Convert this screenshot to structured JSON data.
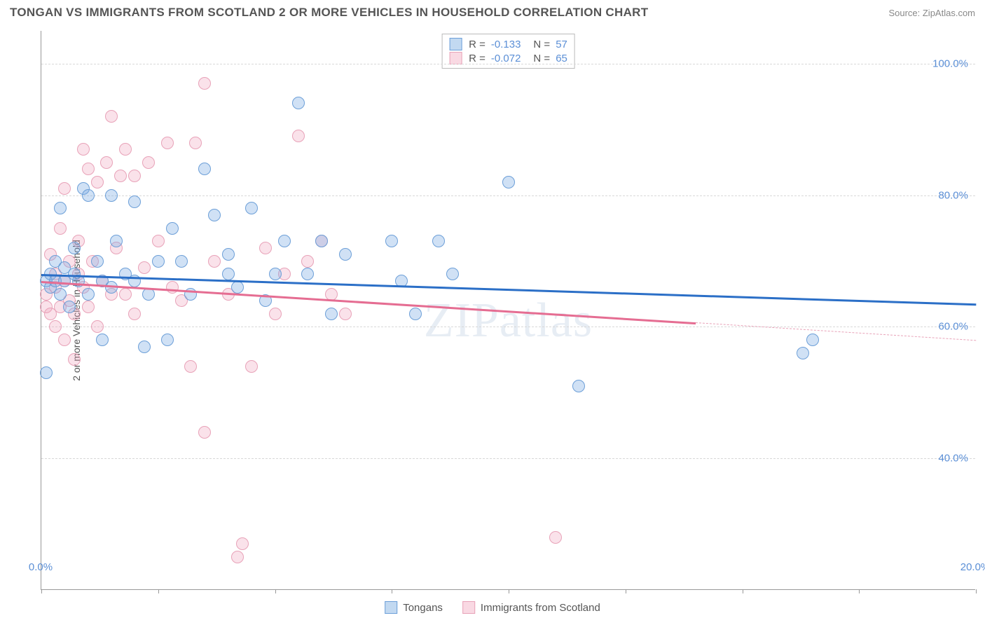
{
  "title": "TONGAN VS IMMIGRANTS FROM SCOTLAND 2 OR MORE VEHICLES IN HOUSEHOLD CORRELATION CHART",
  "source": "Source: ZipAtlas.com",
  "watermark": "ZIPatlas",
  "ylabel": "2 or more Vehicles in Household",
  "chart": {
    "type": "scatter",
    "xlim": [
      0,
      20
    ],
    "ylim": [
      20,
      105
    ],
    "x_ticks": [
      0,
      2.5,
      5,
      7.5,
      10,
      12.5,
      15,
      17.5,
      20
    ],
    "x_tick_labels": {
      "0": "0.0%",
      "20": "20.0%"
    },
    "y_gridlines": [
      40,
      60,
      80,
      100
    ],
    "y_tick_labels": {
      "40": "40.0%",
      "60": "60.0%",
      "80": "80.0%",
      "100": "100.0%"
    },
    "background_color": "#ffffff",
    "grid_color": "#d8d8d8",
    "axis_color": "#999999",
    "tick_label_color": "#5b8fd6",
    "marker_radius": 9,
    "series": [
      {
        "name": "Tongans",
        "color_fill": "rgba(120,170,225,0.35)",
        "color_stroke": "#6c9fd8",
        "trend_color": "#2b6fc7",
        "trend_y_start": 68,
        "trend_y_end": 63.5,
        "R": "-0.133",
        "N": "57",
        "points": [
          [
            0.1,
            67
          ],
          [
            0.1,
            53
          ],
          [
            0.2,
            66
          ],
          [
            0.2,
            68
          ],
          [
            0.3,
            67
          ],
          [
            0.3,
            70
          ],
          [
            0.4,
            78
          ],
          [
            0.4,
            65
          ],
          [
            0.5,
            67
          ],
          [
            0.5,
            69
          ],
          [
            0.6,
            63
          ],
          [
            0.7,
            68
          ],
          [
            0.7,
            72
          ],
          [
            0.8,
            67
          ],
          [
            0.9,
            81
          ],
          [
            1.0,
            80
          ],
          [
            1.0,
            65
          ],
          [
            1.2,
            70
          ],
          [
            1.3,
            67
          ],
          [
            1.3,
            58
          ],
          [
            1.5,
            80
          ],
          [
            1.5,
            66
          ],
          [
            1.6,
            73
          ],
          [
            1.8,
            68
          ],
          [
            2.0,
            67
          ],
          [
            2.0,
            79
          ],
          [
            2.2,
            57
          ],
          [
            2.3,
            65
          ],
          [
            2.5,
            70
          ],
          [
            2.7,
            58
          ],
          [
            2.8,
            75
          ],
          [
            3.0,
            70
          ],
          [
            3.2,
            65
          ],
          [
            3.5,
            84
          ],
          [
            3.7,
            77
          ],
          [
            4.0,
            68
          ],
          [
            4.0,
            71
          ],
          [
            4.2,
            66
          ],
          [
            4.5,
            78
          ],
          [
            4.8,
            64
          ],
          [
            5.0,
            68
          ],
          [
            5.2,
            73
          ],
          [
            5.5,
            94
          ],
          [
            5.7,
            68
          ],
          [
            6.0,
            73
          ],
          [
            6.2,
            62
          ],
          [
            6.5,
            71
          ],
          [
            7.5,
            73
          ],
          [
            7.7,
            67
          ],
          [
            8.0,
            62
          ],
          [
            8.5,
            73
          ],
          [
            8.8,
            68
          ],
          [
            10.0,
            82
          ],
          [
            11.5,
            51
          ],
          [
            16.3,
            56
          ],
          [
            16.5,
            58
          ]
        ]
      },
      {
        "name": "Immigrants from Scotland",
        "color_fill": "rgba(240,160,185,0.3)",
        "color_stroke": "#e8a2b8",
        "trend_color": "#e56d92",
        "trend_y_start": 67,
        "trend_y_end": 58,
        "trend_solid_x_end": 14,
        "R": "-0.072",
        "N": "65",
        "points": [
          [
            0.1,
            65
          ],
          [
            0.1,
            63
          ],
          [
            0.2,
            71
          ],
          [
            0.2,
            62
          ],
          [
            0.3,
            66
          ],
          [
            0.3,
            60
          ],
          [
            0.3,
            68
          ],
          [
            0.4,
            63
          ],
          [
            0.4,
            75
          ],
          [
            0.5,
            67
          ],
          [
            0.5,
            58
          ],
          [
            0.5,
            81
          ],
          [
            0.6,
            64
          ],
          [
            0.6,
            70
          ],
          [
            0.7,
            62
          ],
          [
            0.7,
            55
          ],
          [
            0.8,
            68
          ],
          [
            0.8,
            73
          ],
          [
            0.9,
            66
          ],
          [
            0.9,
            87
          ],
          [
            1.0,
            63
          ],
          [
            1.0,
            84
          ],
          [
            1.1,
            70
          ],
          [
            1.2,
            60
          ],
          [
            1.2,
            82
          ],
          [
            1.3,
            67
          ],
          [
            1.4,
            85
          ],
          [
            1.5,
            65
          ],
          [
            1.5,
            92
          ],
          [
            1.6,
            72
          ],
          [
            1.7,
            83
          ],
          [
            1.8,
            65
          ],
          [
            1.8,
            87
          ],
          [
            2.0,
            83
          ],
          [
            2.0,
            62
          ],
          [
            2.2,
            69
          ],
          [
            2.3,
            85
          ],
          [
            2.5,
            73
          ],
          [
            2.7,
            88
          ],
          [
            2.8,
            66
          ],
          [
            3.0,
            64
          ],
          [
            3.2,
            54
          ],
          [
            3.3,
            88
          ],
          [
            3.5,
            97
          ],
          [
            3.5,
            44
          ],
          [
            3.7,
            70
          ],
          [
            4.0,
            65
          ],
          [
            4.2,
            25
          ],
          [
            4.3,
            27
          ],
          [
            4.5,
            54
          ],
          [
            4.8,
            72
          ],
          [
            5.0,
            62
          ],
          [
            5.2,
            68
          ],
          [
            5.5,
            89
          ],
          [
            5.7,
            70
          ],
          [
            6.0,
            73
          ],
          [
            6.2,
            65
          ],
          [
            6.5,
            62
          ],
          [
            11.0,
            28
          ]
        ]
      }
    ]
  },
  "stats_box": [
    {
      "swatch": "blue",
      "R": "-0.133",
      "N": "57"
    },
    {
      "swatch": "pink",
      "R": "-0.072",
      "N": "65"
    }
  ],
  "legend": [
    {
      "swatch": "blue",
      "label": "Tongans"
    },
    {
      "swatch": "pink",
      "label": "Immigrants from Scotland"
    }
  ]
}
